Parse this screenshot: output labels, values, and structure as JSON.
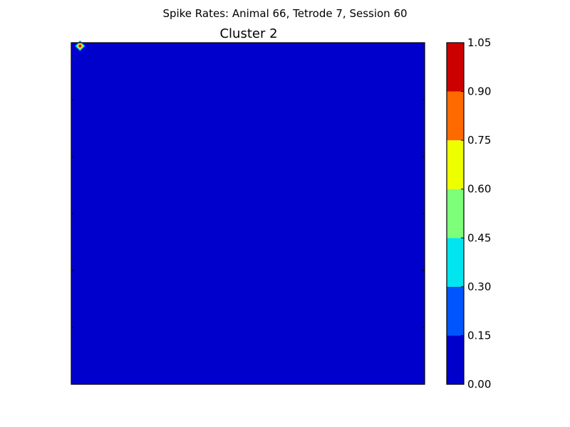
{
  "figure": {
    "suptitle": "Spike Rates: Animal 66, Tetrode 7, Session 60"
  },
  "chart_data": {
    "type": "heatmap",
    "title": "Cluster 2",
    "xlabel": "",
    "ylabel": "",
    "x_ticks_labeled": false,
    "y_ticks_labeled": false,
    "background_value": 0.0,
    "hotspot": {
      "grid_col": 1,
      "grid_row": 1,
      "grid_cols": 60,
      "grid_rows": 58,
      "peak_value": 1.0
    },
    "colorbar": {
      "levels": [
        0.0,
        0.15,
        0.3,
        0.45,
        0.6,
        0.75,
        0.9,
        1.05
      ],
      "tick_labels": [
        "0.00",
        "0.15",
        "0.30",
        "0.45",
        "0.60",
        "0.75",
        "0.90",
        "1.05"
      ],
      "colors": [
        "#0000cd",
        "#0055ff",
        "#00e5ee",
        "#7dff7a",
        "#eeff00",
        "#ff6a00",
        "#cd0000"
      ]
    }
  }
}
